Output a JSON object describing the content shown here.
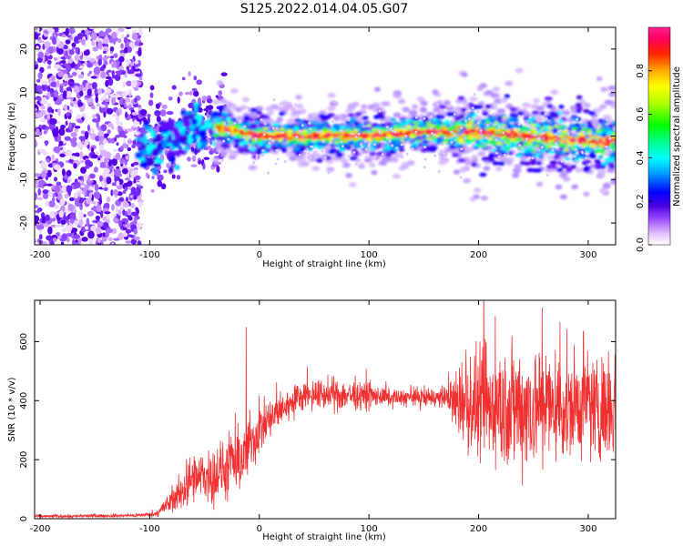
{
  "title": "S125.2022.014.04.05.G07",
  "chart_data": [
    {
      "type": "heatmap",
      "name": "spectrogram",
      "xlabel": "Height of straight line (km)",
      "ylabel": "Frequency (Hz)",
      "xlim": [
        -205,
        325
      ],
      "ylim": [
        -25,
        25
      ],
      "xticks": [
        -200,
        -100,
        0,
        100,
        200,
        300
      ],
      "yticks": [
        -20,
        -10,
        0,
        10,
        20
      ],
      "colorbar": {
        "label": "Normalized spectral amplitude",
        "range": [
          0,
          1
        ],
        "ticks": [
          0.0,
          0.2,
          0.4,
          0.6,
          0.8
        ],
        "colors": [
          "#ffffff",
          "#e0b8ff",
          "#9a4bff",
          "#5a00e6",
          "#0000ff",
          "#00aaff",
          "#00ffff",
          "#00ff66",
          "#00ff00",
          "#b0ff00",
          "#ffff00",
          "#ffaa00",
          "#ff3300",
          "#ff0066",
          "#ff2090"
        ]
      },
      "ridge": {
        "x": [
          -40,
          0,
          50,
          100,
          150,
          200,
          250,
          300,
          325
        ],
        "freq": [
          2,
          0,
          0,
          0,
          1,
          1,
          0,
          -1,
          -1.5
        ]
      }
    },
    {
      "type": "line",
      "name": "snr",
      "xlabel": "Height of straight line (km)",
      "ylabel": "SNR (10 * v/v)",
      "xlim": [
        -205,
        325
      ],
      "ylim": [
        0,
        740
      ],
      "xticks": [
        -200,
        -100,
        0,
        100,
        200,
        300
      ],
      "yticks": [
        0,
        200,
        400,
        600
      ],
      "color": "#f03030",
      "envelope": {
        "x": [
          -205,
          -120,
          -95,
          -80,
          -60,
          -40,
          -20,
          0,
          20,
          40,
          80,
          120,
          170,
          190,
          230,
          280,
          325
        ],
        "mean": [
          8,
          10,
          15,
          60,
          130,
          150,
          180,
          300,
          370,
          420,
          420,
          410,
          410,
          380,
          380,
          380,
          380
        ],
        "noise": [
          4,
          4,
          6,
          30,
          60,
          70,
          80,
          60,
          40,
          35,
          40,
          20,
          25,
          120,
          160,
          130,
          120
        ]
      },
      "spike": {
        "x": -12,
        "value": 650
      }
    }
  ]
}
